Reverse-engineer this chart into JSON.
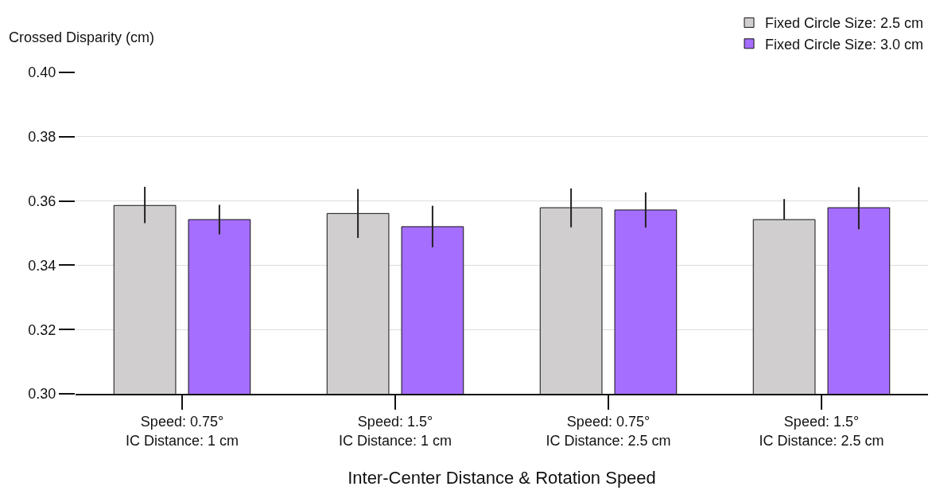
{
  "chart_data": {
    "type": "bar",
    "categories": [
      "Speed: 0.75°\nIC Distance: 1 cm",
      "Speed: 1.5°\nIC Distance: 1 cm",
      "Speed: 0.75°\nIC Distance: 2.5 cm",
      "Speed: 1.5°\nIC Distance: 2.5 cm"
    ],
    "series": [
      {
        "name": "Fixed Circle Size: 2.5 cm",
        "color": "#d0cecf",
        "values": [
          0.3586,
          0.3561,
          0.3579,
          0.3542
        ],
        "errors": [
          [
            0.3531,
            0.3644
          ],
          [
            0.3485,
            0.3637
          ],
          [
            0.3518,
            0.3639
          ],
          [
            0.3542,
            0.3606
          ]
        ]
      },
      {
        "name": "Fixed Circle Size: 3.0 cm",
        "color": "#a66efe",
        "values": [
          0.3542,
          0.352,
          0.3572,
          0.3579
        ],
        "errors": [
          [
            0.3496,
            0.3588
          ],
          [
            0.3456,
            0.3585
          ],
          [
            0.3517,
            0.3627
          ],
          [
            0.3512,
            0.3643
          ]
        ]
      }
    ],
    "xlabel": "Inter-Center Distance & Rotation Speed",
    "ylabel": "Crossed Disparity (cm)",
    "ylim": [
      0.3,
      0.4
    ],
    "yticks": [
      {
        "value": 0.3,
        "label": "0.30"
      },
      {
        "value": 0.32,
        "label": "0.32"
      },
      {
        "value": 0.34,
        "label": "0.34"
      },
      {
        "value": 0.36,
        "label": "0.36"
      },
      {
        "value": 0.38,
        "label": "0.38"
      },
      {
        "value": 0.4,
        "label": "0.40"
      }
    ],
    "grid": "y",
    "legend": "top right"
  }
}
